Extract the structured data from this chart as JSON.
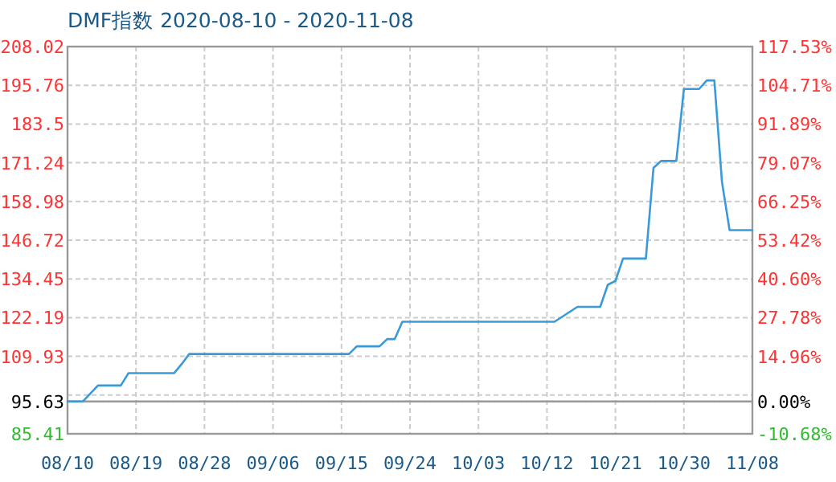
{
  "chart_data": {
    "type": "line",
    "title": "DMF指数 2020-08-10 - 2020-11-08",
    "x": [
      "2020-08-10",
      "2020-08-12",
      "2020-08-14",
      "2020-08-17",
      "2020-08-18",
      "2020-08-24",
      "2020-08-25",
      "2020-08-26",
      "2020-09-16",
      "2020-09-17",
      "2020-09-20",
      "2020-09-21",
      "2020-09-22",
      "2020-09-23",
      "2020-10-13",
      "2020-10-16",
      "2020-10-19",
      "2020-10-20",
      "2020-10-21",
      "2020-10-22",
      "2020-10-25",
      "2020-10-26",
      "2020-10-27",
      "2020-10-29",
      "2020-10-30",
      "2020-11-01",
      "2020-11-02",
      "2020-11-03",
      "2020-11-04",
      "2020-11-05",
      "2020-11-08"
    ],
    "series": [
      {
        "color": "#3a9ad9",
        "values": [
          95.63,
          95.63,
          100.7,
          100.7,
          104.6,
          104.6,
          107.5,
          110.7,
          110.7,
          113.1,
          113.1,
          115.4,
          115.4,
          120.9,
          120.9,
          125.6,
          125.6,
          132.6,
          133.8,
          140.9,
          140.9,
          169.6,
          171.8,
          171.8,
          194.6,
          194.6,
          197.3,
          197.3,
          165.2,
          149.9,
          149.9
        ]
      }
    ],
    "xlim": [
      "2020-08-10",
      "2020-11-08"
    ],
    "xticks": [
      {
        "value": "2020-08-10",
        "label": "08/10"
      },
      {
        "value": "2020-08-19",
        "label": "08/19"
      },
      {
        "value": "2020-08-28",
        "label": "08/28"
      },
      {
        "value": "2020-09-06",
        "label": "09/06"
      },
      {
        "value": "2020-09-15",
        "label": "09/15"
      },
      {
        "value": "2020-09-24",
        "label": "09/24"
      },
      {
        "value": "2020-10-03",
        "label": "10/03"
      },
      {
        "value": "2020-10-12",
        "label": "10/12"
      },
      {
        "value": "2020-10-21",
        "label": "10/21"
      },
      {
        "value": "2020-10-30",
        "label": "10/30"
      },
      {
        "value": "2020-11-08",
        "label": "11/08"
      }
    ],
    "ylim": [
      85.41,
      208.02
    ],
    "yticks": [
      85.41,
      {
        "value": 97.67,
        "label": null
      },
      95.63,
      109.93,
      122.19,
      134.45,
      146.72,
      158.98,
      171.24,
      183.5,
      195.76,
      208.02
    ],
    "y2lim": [
      -10.68,
      117.53
    ],
    "y2ticks": [
      {
        "value": -10.68,
        "label": "-10.68%"
      },
      {
        "value": 0,
        "label": "0.00%"
      },
      {
        "value": 14.96,
        "label": "14.96%"
      },
      {
        "value": 27.78,
        "label": "27.78%"
      },
      {
        "value": 40.6,
        "label": "40.60%"
      },
      {
        "value": 53.42,
        "label": "53.42%"
      },
      {
        "value": 66.25,
        "label": "66.25%"
      },
      {
        "value": 79.07,
        "label": "79.07%"
      },
      {
        "value": 91.89,
        "label": "91.89%"
      },
      {
        "value": 104.71,
        "label": "104.71%"
      },
      {
        "value": 117.53,
        "label": "117.53%"
      }
    ],
    "grid": true,
    "ref_lines": [
      {
        "axis": "y",
        "value": 95.63,
        "color": "#999999"
      }
    ]
  }
}
